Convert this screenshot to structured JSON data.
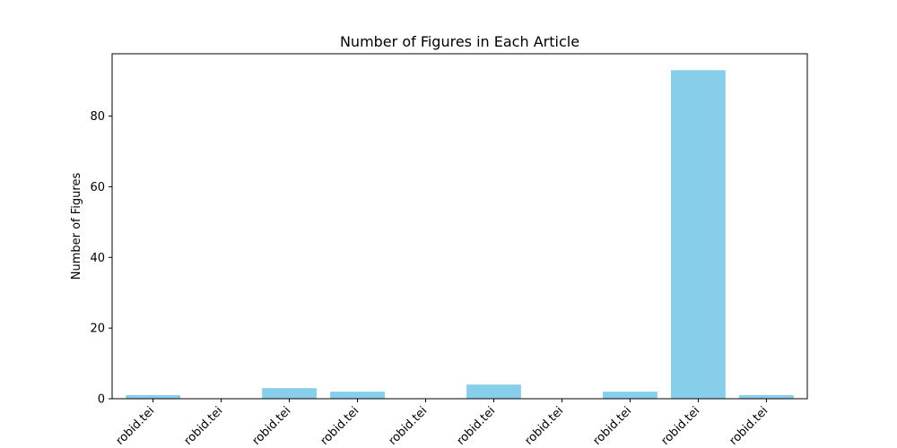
{
  "chart_data": {
    "type": "bar",
    "title": "Number of Figures in Each Article",
    "xlabel": "",
    "ylabel": "Number of Figures",
    "categories": [
      "robid.tei",
      "robid.tei",
      "robid.tei",
      "robid.tei",
      "robid.tei",
      "robid.tei",
      "robid.tei",
      "robid.tei",
      "robid.tei",
      "robid.tei"
    ],
    "values": [
      1,
      0,
      3,
      2,
      0,
      4,
      0,
      2,
      93,
      1
    ],
    "ylim": [
      0,
      97.65
    ],
    "yticks": [
      0,
      20,
      40,
      60,
      80
    ],
    "ytick_labels": [
      "0",
      "20",
      "40",
      "60",
      "80"
    ],
    "bar_color": "#87ceeb",
    "grid": false,
    "legend": "none"
  }
}
